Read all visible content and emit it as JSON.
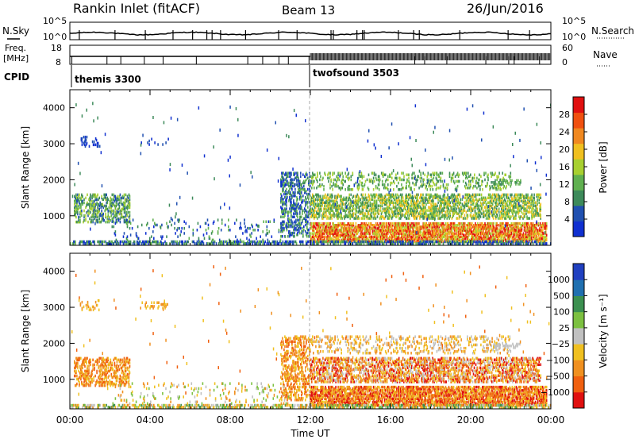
{
  "header": {
    "station": "Rankin Inlet (fitACF)",
    "beam": "Beam 13",
    "date": "26/Jun/2016"
  },
  "nsky_panel": {
    "left_label": "N.Sky",
    "left_ticks": [
      "10^5",
      "10^0"
    ],
    "right_label": "N.Search",
    "right_ticks": [
      "10^5",
      "10^0"
    ]
  },
  "freq_panel": {
    "left_label_1": "Freq.",
    "left_label_2": "[MHz]",
    "left_ticks": [
      "18",
      "8"
    ],
    "right_label": "Nave",
    "right_ticks": [
      "60",
      "0"
    ]
  },
  "cpid": {
    "label": "CPID",
    "programs": [
      {
        "name": "themis 3300",
        "start_hour": 0
      },
      {
        "name": "twofsound 3503",
        "start_hour": 12
      }
    ]
  },
  "colors": {
    "power_scale": [
      "#1030d0",
      "#2050b0",
      "#3d8a5a",
      "#60b050",
      "#a8d030",
      "#f0c020",
      "#f08820",
      "#f05010",
      "#e01010"
    ],
    "velocity_scale": [
      "#2040c0",
      "#2070b0",
      "#3c9050",
      "#7cc040",
      "#c0c0c0",
      "#f0c020",
      "#f09020",
      "#f06010",
      "#e01010"
    ]
  },
  "chart_data": [
    {
      "type": "heatmap",
      "title": "",
      "ylabel": "Slant Range [km]",
      "ylim": [
        180,
        4500
      ],
      "xlim": [
        0,
        24
      ],
      "yticks": [
        "1000",
        "2000",
        "3000",
        "4000"
      ],
      "colorbar": {
        "label": "Power [dB]",
        "ticks": [
          "4",
          "8",
          "12",
          "16",
          "20",
          "24",
          "28"
        ],
        "range": [
          0,
          30
        ]
      }
    },
    {
      "type": "heatmap",
      "title": "",
      "ylabel": "Slant Range [km]",
      "xlabel": "Time UT",
      "ylim": [
        180,
        4500
      ],
      "xlim": [
        0,
        24
      ],
      "yticks": [
        "1000",
        "2000",
        "3000",
        "4000"
      ],
      "xticks": [
        "00:00",
        "04:00",
        "08:00",
        "12:00",
        "16:00",
        "20:00",
        "00:00"
      ],
      "colorbar": {
        "label": "Velocity [m s⁻¹]",
        "ticks": [
          "1000",
          "500",
          "100",
          "25",
          "−25",
          "−100",
          "−500",
          "−1000"
        ],
        "range": [
          -1000,
          1000
        ]
      }
    }
  ]
}
